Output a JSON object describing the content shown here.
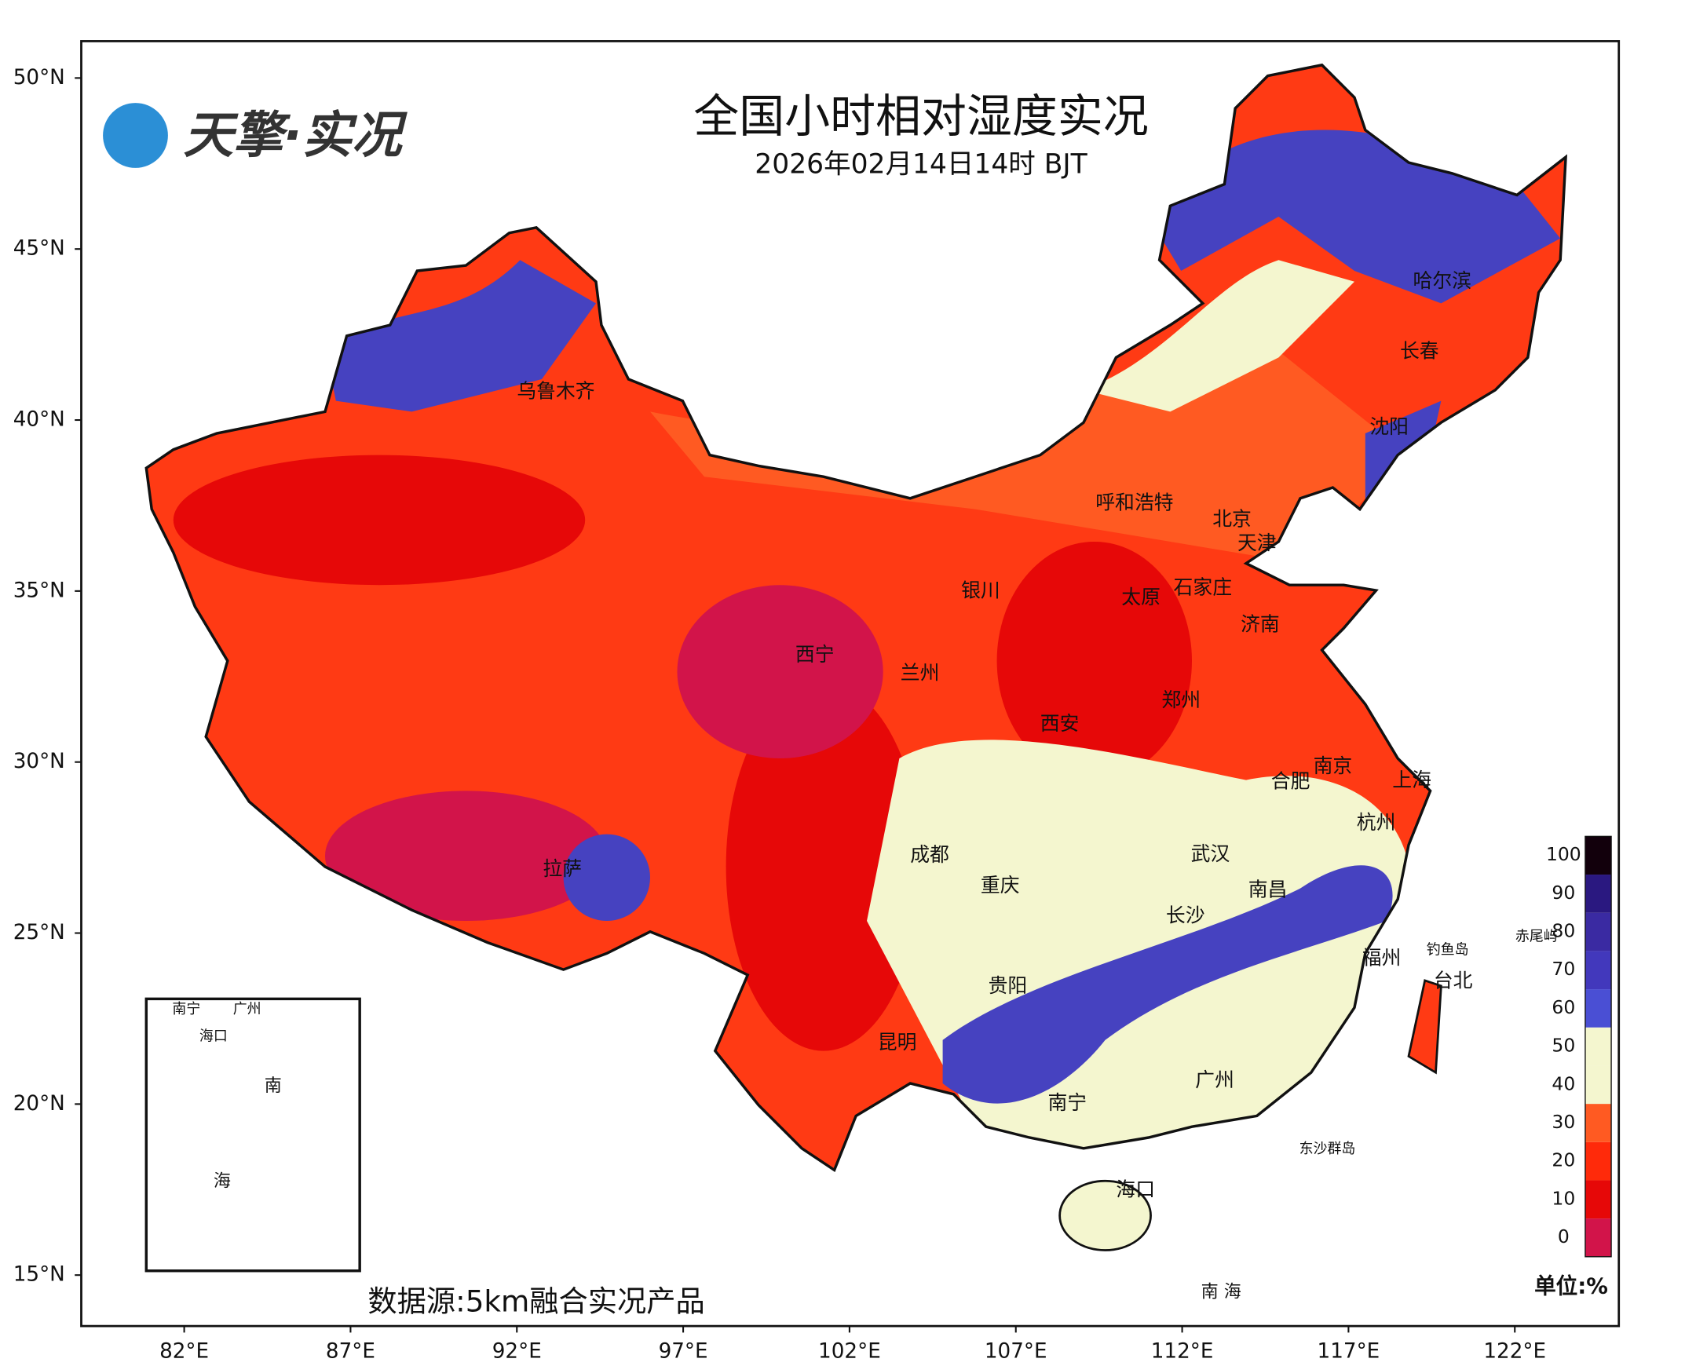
{
  "header": {
    "logo": "天擎·实况",
    "title": "全国小时相对湿度实况",
    "subtitle": "2026年02月14日14时 BJT"
  },
  "source": "数据源:5km融合实况产品",
  "colorbar": {
    "unit": "单位:%",
    "ticks": [
      0,
      10,
      20,
      30,
      40,
      50,
      60,
      70,
      80,
      90,
      100
    ],
    "colors": [
      "#d2144a",
      "#e60808",
      "#ff2a0a",
      "#ff5a22",
      "#f4f6cf",
      "#f4f6cf",
      "#4a4fd4",
      "#4238bc",
      "#3a2aa2",
      "#2a1880",
      "#12000c"
    ]
  },
  "axes": {
    "lat_ticks": [
      {
        "value": 50,
        "label": "50°N"
      },
      {
        "value": 45,
        "label": "45°N"
      },
      {
        "value": 40,
        "label": "40°N"
      },
      {
        "value": 35,
        "label": "35°N"
      },
      {
        "value": 30,
        "label": "30°N"
      },
      {
        "value": 25,
        "label": "25°N"
      },
      {
        "value": 20,
        "label": "20°N"
      },
      {
        "value": 15,
        "label": "15°N"
      }
    ],
    "lon_ticks": [
      {
        "value": 82,
        "label": "82°E"
      },
      {
        "value": 87,
        "label": "87°E"
      },
      {
        "value": 92,
        "label": "92°E"
      },
      {
        "value": 97,
        "label": "97°E"
      },
      {
        "value": 102,
        "label": "102°E"
      },
      {
        "value": 107,
        "label": "107°E"
      },
      {
        "value": 112,
        "label": "112°E"
      },
      {
        "value": 117,
        "label": "117°E"
      },
      {
        "value": 122,
        "label": "122°E"
      }
    ]
  },
  "cities": [
    "乌鲁木齐",
    "呼和浩特",
    "北京",
    "天津",
    "银川",
    "太原",
    "石家庄",
    "济南",
    "西宁",
    "兰州",
    "郑州",
    "西安",
    "南京",
    "合肥",
    "上海",
    "杭州",
    "成都",
    "武汉",
    "拉萨",
    "重庆",
    "南昌",
    "长沙",
    "福州",
    "贵阳",
    "昆明",
    "广州",
    "南宁",
    "海口",
    "哈尔滨",
    "长春",
    "沈阳",
    "台北"
  ],
  "islands": [
    "钓鱼岛",
    "赤尾屿",
    "东沙群岛",
    "南 海"
  ],
  "inset": {
    "labels": [
      "南宁",
      "广州",
      "海口",
      "南",
      "海"
    ]
  }
}
